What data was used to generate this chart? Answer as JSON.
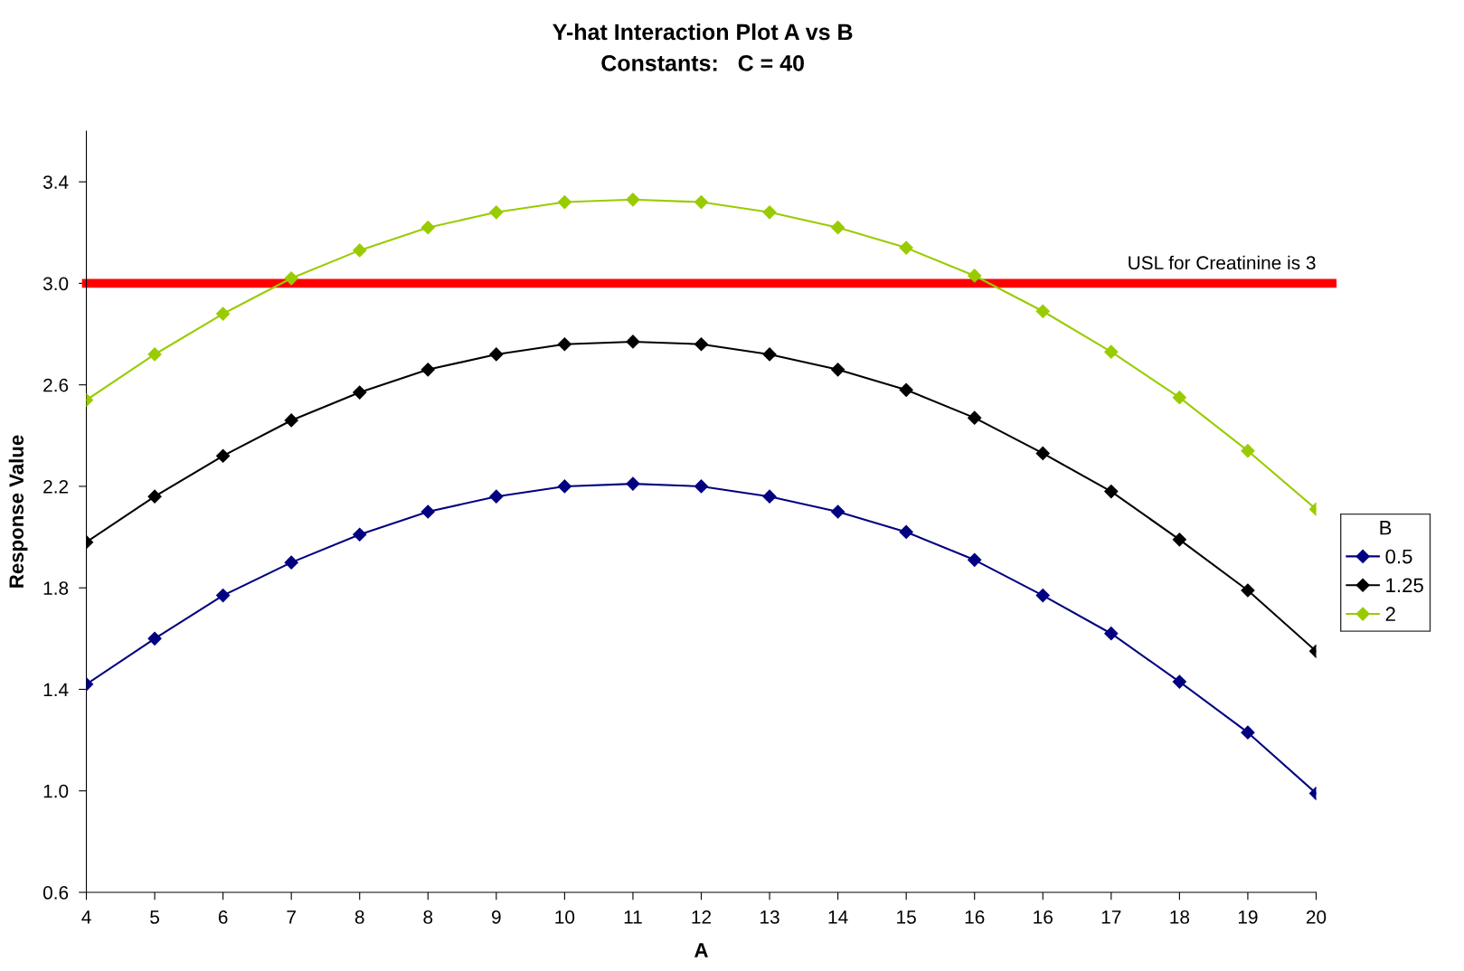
{
  "chart_data": {
    "type": "line",
    "title": "Y-hat Interaction Plot A vs B",
    "subtitle": "Constants:   C = 40",
    "xlabel": "A",
    "ylabel": "Response Value",
    "legend_title": "B",
    "categories": [
      "4",
      "5",
      "6",
      "7",
      "8",
      "8",
      "9",
      "10",
      "11",
      "12",
      "13",
      "14",
      "15",
      "16",
      "16",
      "17",
      "18",
      "19",
      "20"
    ],
    "series": [
      {
        "name": "0.5",
        "color": "#000080",
        "values": [
          1.42,
          1.6,
          1.77,
          1.9,
          2.01,
          2.1,
          2.16,
          2.2,
          2.21,
          2.2,
          2.16,
          2.1,
          2.02,
          1.91,
          1.77,
          1.62,
          1.43,
          1.23,
          0.99
        ]
      },
      {
        "name": "1.25",
        "color": "#000000",
        "values": [
          1.98,
          2.16,
          2.32,
          2.46,
          2.57,
          2.66,
          2.72,
          2.76,
          2.77,
          2.76,
          2.72,
          2.66,
          2.58,
          2.47,
          2.33,
          2.18,
          1.99,
          1.79,
          1.55
        ]
      },
      {
        "name": "2",
        "color": "#99cc00",
        "values": [
          2.54,
          2.72,
          2.88,
          3.02,
          3.13,
          3.22,
          3.28,
          3.32,
          3.33,
          3.32,
          3.28,
          3.22,
          3.14,
          3.03,
          2.89,
          2.73,
          2.55,
          2.34,
          2.11
        ]
      }
    ],
    "ylim": [
      0.6,
      3.6
    ],
    "yticks": [
      {
        "value": 0.6,
        "label": "0.6"
      },
      {
        "value": 1.0,
        "label": "1.0"
      },
      {
        "value": 1.4,
        "label": "1.4"
      },
      {
        "value": 1.8,
        "label": "1.8"
      },
      {
        "value": 2.2,
        "label": "2.2"
      },
      {
        "value": 2.6,
        "label": "2.6"
      },
      {
        "value": 3.0,
        "label": "3.0"
      },
      {
        "value": 3.4,
        "label": "3.4"
      }
    ],
    "ref_lines": [
      {
        "axis": "y",
        "value": 3,
        "label": "USL for Creatinine is 3",
        "color": "#ff0000"
      }
    ],
    "grid": false,
    "legend": "right",
    "marker": "diamond",
    "line_style": "solid"
  }
}
